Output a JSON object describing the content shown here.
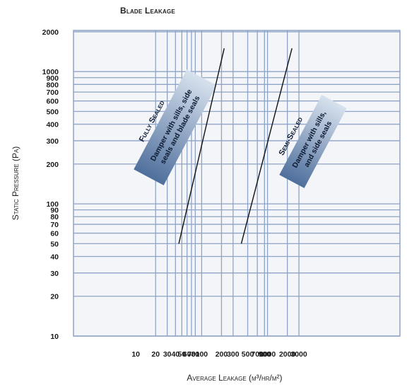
{
  "chart_data": {
    "type": "line",
    "title": "Blade Leakage",
    "xlabel": "Average Leakage (m³/hr/m²)",
    "ylabel": "Static Pressure (Pa)",
    "x_scale": "log",
    "y_scale": "log",
    "xlim": [
      10,
      3000
    ],
    "ylim": [
      10,
      2000
    ],
    "grid": true,
    "x_ticks": [
      10,
      20,
      30,
      40,
      50,
      60,
      70,
      80,
      100,
      200,
      300,
      500,
      700,
      900,
      1000,
      2000,
      3000
    ],
    "x_tick_labels": [
      "10",
      "20",
      "30",
      "40",
      "50",
      "60",
      "70",
      "80",
      "100",
      "200",
      "300",
      "500",
      "700",
      "900",
      "1000",
      "2000",
      "3000"
    ],
    "y_ticks": [
      10,
      20,
      30,
      40,
      50,
      60,
      70,
      80,
      90,
      100,
      200,
      300,
      400,
      500,
      600,
      700,
      800,
      900,
      1000,
      2000
    ],
    "y_tick_labels": [
      "10",
      "20",
      "30",
      "40",
      "50",
      "60",
      "70",
      "80",
      "90",
      "100",
      "200",
      "300",
      "400",
      "500",
      "600",
      "700",
      "800",
      "900",
      "1000",
      "2000"
    ],
    "series": [
      {
        "name": "Fully Sealed",
        "x": [
          45,
          220
        ],
        "y": [
          50,
          1500
        ],
        "color": "#111111"
      },
      {
        "name": "Semi-Sealed",
        "x": [
          400,
          2350
        ],
        "y": [
          50,
          1500
        ],
        "color": "#111111"
      }
    ],
    "annotations": [
      {
        "heading": "Fully Sealed",
        "lines": [
          "Damper with sills, side",
          "seals and blade seals"
        ]
      },
      {
        "heading": "Semi-Sealed",
        "lines": [
          "Damper with sills,",
          "and side seals"
        ]
      }
    ],
    "colors": {
      "grid": "#8fa4c6",
      "plot_background": "#f3f5f8",
      "band_dark": "#4f6f9c",
      "band_light": "#d8e2ee"
    }
  }
}
